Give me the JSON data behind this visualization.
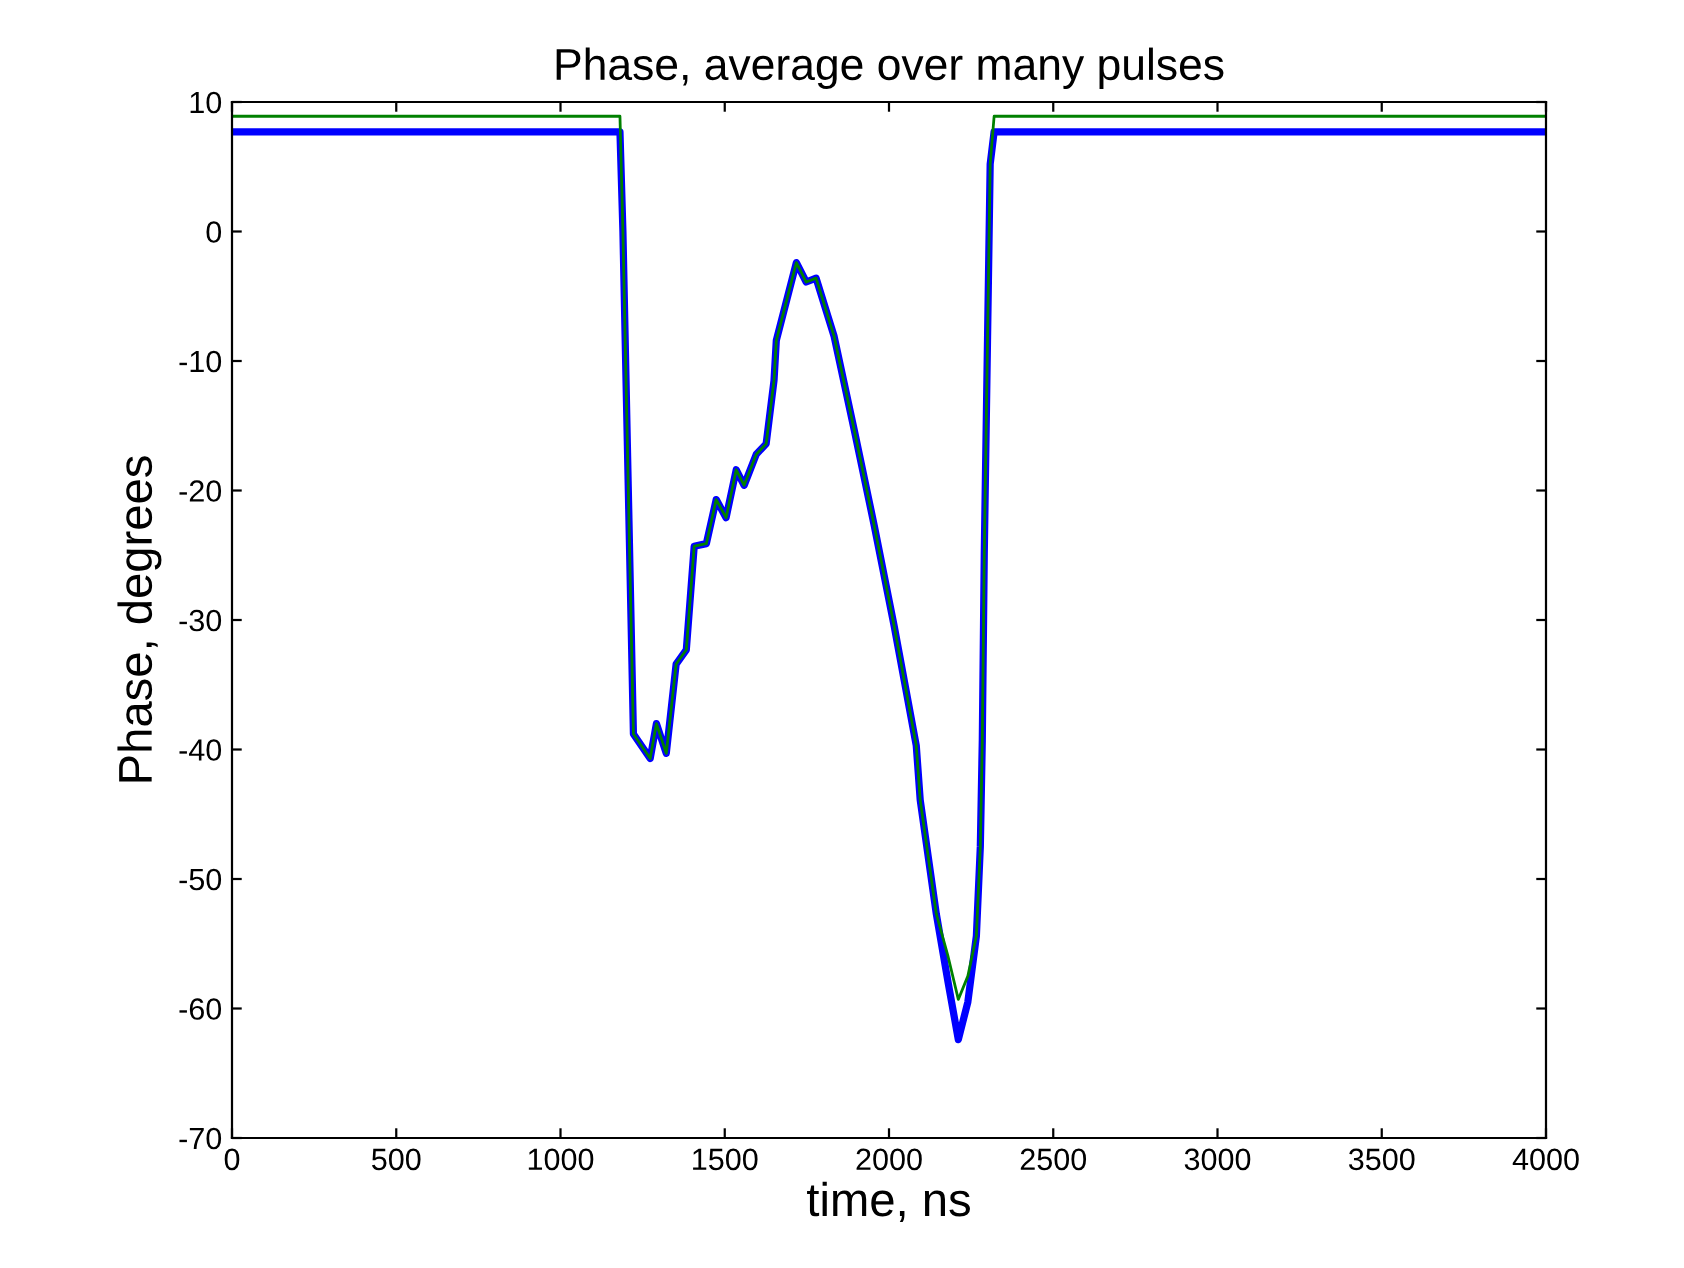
{
  "chart_data": {
    "type": "line",
    "title": "Phase, average over many pulses",
    "xlabel": "time, ns",
    "ylabel": "Phase, degrees",
    "xlim": [
      0,
      4000
    ],
    "ylim": [
      -70,
      10
    ],
    "xticks": [
      0,
      500,
      1000,
      1500,
      2000,
      2500,
      3000,
      3500,
      4000
    ],
    "yticks": [
      -70,
      -60,
      -50,
      -40,
      -30,
      -20,
      -10,
      0,
      10
    ],
    "grid": false,
    "legend": false,
    "series": [
      {
        "color": "#0000ff",
        "x": [
          0,
          1181,
          1190,
          1222,
          1273,
          1292,
          1322,
          1352,
          1383,
          1407,
          1444,
          1474,
          1504,
          1535,
          1559,
          1596,
          1626,
          1650,
          1657,
          1718,
          1748,
          1778,
          1833,
          1894,
          1955,
          2016,
          2083,
          2095,
          2144,
          2180,
          2211,
          2240,
          2266,
          2278,
          2284,
          2290,
          2308,
          2320,
          4000
        ],
        "values": [
          7.7,
          7.7,
          0,
          -38.8,
          -40.7,
          -38,
          -40.3,
          -33.4,
          -32.3,
          -24.3,
          -24.1,
          -20.7,
          -22.1,
          -18.4,
          -19.6,
          -17.2,
          -16.4,
          -11.5,
          -8.4,
          -2.4,
          -3.9,
          -3.6,
          -8.1,
          -15.3,
          -22.7,
          -30.5,
          -39.7,
          -43.9,
          -52.7,
          -58,
          -62.4,
          -59.5,
          -54.4,
          -47.5,
          -39.3,
          -24.9,
          5.2,
          7.7,
          7.7
        ]
      },
      {
        "color": "#008000",
        "x": [
          0,
          1181,
          1190,
          1222,
          1273,
          1292,
          1322,
          1352,
          1383,
          1407,
          1444,
          1474,
          1504,
          1535,
          1559,
          1596,
          1626,
          1650,
          1657,
          1718,
          1748,
          1778,
          1833,
          1894,
          1955,
          2016,
          2083,
          2095,
          2144,
          2180,
          2211,
          2240,
          2266,
          2278,
          2284,
          2290,
          2308,
          2320,
          4000
        ],
        "values": [
          8.9,
          8.9,
          0,
          -38.8,
          -40.7,
          -38,
          -40.3,
          -33.4,
          -32.3,
          -24.3,
          -24.1,
          -20.7,
          -22.1,
          -18.4,
          -19.6,
          -17.2,
          -16.4,
          -11.5,
          -8.4,
          -2.4,
          -3.9,
          -3.6,
          -8.1,
          -15.3,
          -22.7,
          -30.5,
          -39.7,
          -43.9,
          -52.7,
          -56,
          -59.3,
          -57.5,
          -54.4,
          -47.5,
          -39.3,
          -24.9,
          5.2,
          8.9,
          8.9
        ]
      }
    ]
  }
}
